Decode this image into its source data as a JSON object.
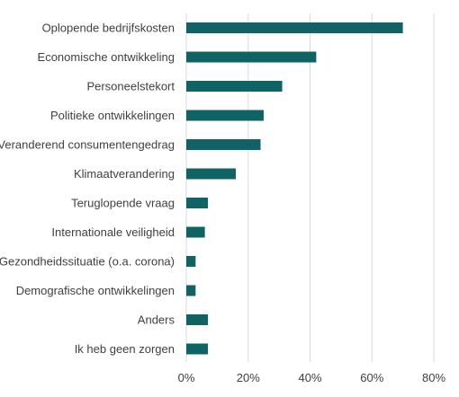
{
  "chart_data": {
    "type": "bar",
    "orientation": "horizontal",
    "title": "",
    "xlabel": "",
    "ylabel": "",
    "categories": [
      "Oplopende bedrijfskosten",
      "Economische ontwikkeling",
      "Personeelstekort",
      "Politieke ontwikkelingen",
      "Veranderend consumentengedrag",
      "Klimaatverandering",
      "Teruglopende vraag",
      "Internationale veiligheid",
      "Gezondheidssituatie (o.a. corona)",
      "Demografische ontwikkelingen",
      "Anders",
      "Ik heb geen zorgen"
    ],
    "values": [
      70,
      42,
      31,
      25,
      24,
      16,
      7,
      6,
      3,
      3,
      7,
      7
    ],
    "xlim": [
      0,
      80
    ],
    "xticks": [
      "0%",
      "20%",
      "40%",
      "60%",
      "80%"
    ],
    "grid": true,
    "legend": "none",
    "colors": {
      "bar": "#0f6364",
      "grid": "#d9d9d9",
      "text": "#404040"
    }
  }
}
